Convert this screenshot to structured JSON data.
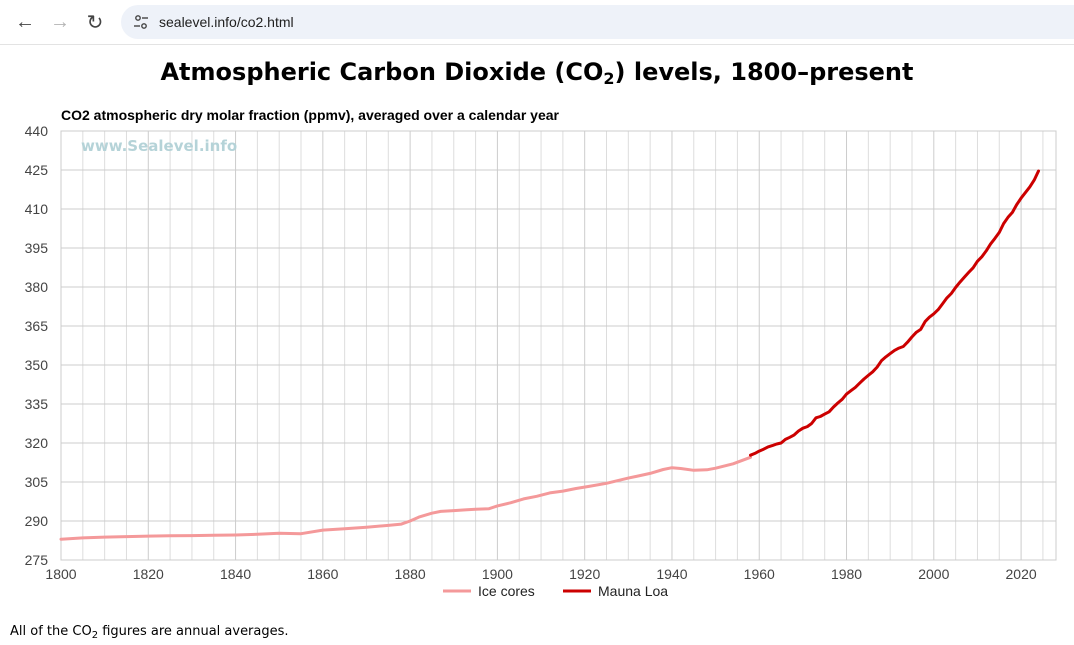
{
  "browser": {
    "back_icon": "arrow-left-icon",
    "forward_icon": "arrow-right-icon",
    "reload_icon": "reload-icon",
    "site_info_icon": "tune-icon",
    "url": "sealevel.info/co2.html"
  },
  "page": {
    "title_pre": "Atmospheric Carbon Dioxide (CO",
    "title_sub": "2",
    "title_post": ") levels, 1800–present",
    "footnote_pre": "All of the CO",
    "footnote_sub": "2",
    "footnote_post": " figures are annual averages."
  },
  "chart_data": {
    "type": "line",
    "title": "CO2 atmospheric dry molar fraction (ppmv), averaged over a calendar year",
    "watermark": "www.Sealevel.info",
    "xlabel": "",
    "ylabel": "",
    "xlim": [
      1800,
      2028
    ],
    "ylim": [
      275,
      440
    ],
    "x_ticks": [
      "1800",
      "1820",
      "1840",
      "1860",
      "1880",
      "1900",
      "1920",
      "1940",
      "1960",
      "1980",
      "2000",
      "2020"
    ],
    "y_ticks": [
      "275",
      "290",
      "305",
      "320",
      "335",
      "350",
      "365",
      "380",
      "395",
      "410",
      "425",
      "440"
    ],
    "grid": true,
    "legend_position": "bottom",
    "series": [
      {
        "name": "Ice cores",
        "color": "#f4999a",
        "x": [
          1800,
          1805,
          1810,
          1815,
          1820,
          1825,
          1830,
          1835,
          1840,
          1845,
          1850,
          1855,
          1860,
          1865,
          1870,
          1875,
          1878,
          1880,
          1882,
          1885,
          1887,
          1890,
          1893,
          1895,
          1898,
          1900,
          1903,
          1906,
          1909,
          1912,
          1915,
          1918,
          1921,
          1925,
          1930,
          1935,
          1938,
          1940,
          1942,
          1945,
          1948,
          1950,
          1954,
          1958
        ],
        "y": [
          283.0,
          283.5,
          283.8,
          284.0,
          284.2,
          284.3,
          284.4,
          284.5,
          284.6,
          284.9,
          285.3,
          285.1,
          286.5,
          287.0,
          287.6,
          288.3,
          288.8,
          290.0,
          291.5,
          293.0,
          293.7,
          294.0,
          294.3,
          294.5,
          294.7,
          295.8,
          297.0,
          298.5,
          299.5,
          300.8,
          301.5,
          302.5,
          303.3,
          304.5,
          306.5,
          308.3,
          309.8,
          310.5,
          310.2,
          309.5,
          309.7,
          310.3,
          312.0,
          314.5
        ]
      },
      {
        "name": "Mauna Loa",
        "color": "#cc0000",
        "x": [
          1958,
          1959,
          1960,
          1961,
          1962,
          1963,
          1964,
          1965,
          1966,
          1967,
          1968,
          1969,
          1970,
          1971,
          1972,
          1973,
          1974,
          1975,
          1976,
          1977,
          1978,
          1979,
          1980,
          1981,
          1982,
          1983,
          1984,
          1985,
          1986,
          1987,
          1988,
          1989,
          1990,
          1991,
          1992,
          1993,
          1994,
          1995,
          1996,
          1997,
          1998,
          1999,
          2000,
          2001,
          2002,
          2003,
          2004,
          2005,
          2006,
          2007,
          2008,
          2009,
          2010,
          2011,
          2012,
          2013,
          2014,
          2015,
          2016,
          2017,
          2018,
          2019,
          2020,
          2021,
          2022,
          2023,
          2024
        ],
        "y": [
          315.3,
          316.0,
          316.9,
          317.6,
          318.5,
          319.0,
          319.6,
          320.0,
          321.4,
          322.2,
          323.1,
          324.6,
          325.7,
          326.3,
          327.5,
          329.7,
          330.2,
          331.1,
          332.0,
          333.8,
          335.4,
          336.8,
          338.8,
          340.1,
          341.4,
          343.0,
          344.6,
          346.0,
          347.4,
          349.2,
          351.6,
          353.1,
          354.4,
          355.6,
          356.5,
          357.1,
          358.8,
          360.8,
          362.6,
          363.7,
          366.7,
          368.4,
          369.7,
          371.3,
          373.5,
          375.8,
          377.5,
          379.8,
          381.9,
          383.8,
          385.6,
          387.4,
          389.9,
          391.6,
          393.9,
          396.5,
          398.7,
          401.0,
          404.4,
          406.8,
          408.7,
          411.7,
          414.2,
          416.4,
          418.5,
          421.1,
          424.6
        ]
      }
    ]
  }
}
